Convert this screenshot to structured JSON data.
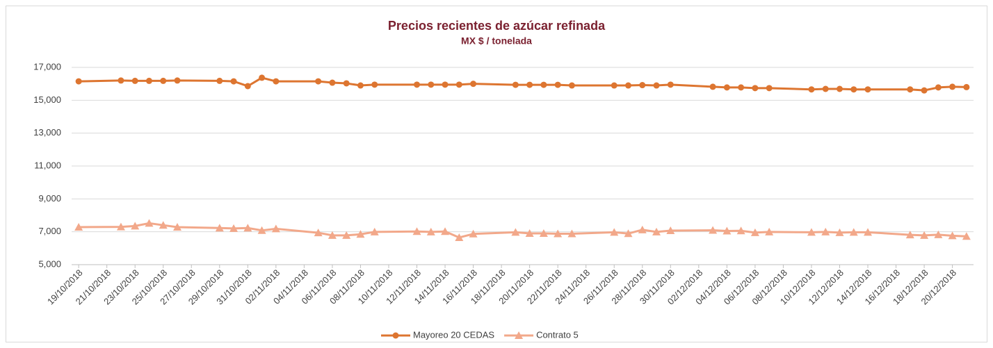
{
  "chart_data": {
    "type": "line",
    "title": "Precios recientes de azúcar refinada",
    "subtitle": "MX $ / tonelada",
    "x": [
      "19/10/2018",
      "22/10/2018",
      "23/10/2018",
      "24/10/2018",
      "25/10/2018",
      "26/10/2018",
      "29/10/2018",
      "30/10/2018",
      "31/10/2018",
      "01/11/2018",
      "02/11/2018",
      "05/11/2018",
      "06/11/2018",
      "07/11/2018",
      "08/11/2018",
      "09/11/2018",
      "12/11/2018",
      "13/11/2018",
      "14/11/2018",
      "15/11/2018",
      "16/11/2018",
      "19/11/2018",
      "20/11/2018",
      "21/11/2018",
      "22/11/2018",
      "23/11/2018",
      "26/11/2018",
      "27/11/2018",
      "28/11/2018",
      "29/11/2018",
      "30/11/2018",
      "03/12/2018",
      "04/12/2018",
      "05/12/2018",
      "06/12/2018",
      "07/12/2018",
      "10/12/2018",
      "11/12/2018",
      "12/12/2018",
      "13/12/2018",
      "14/12/2018",
      "17/12/2018",
      "18/12/2018",
      "19/12/2018",
      "20/12/2018",
      "21/12/2018"
    ],
    "series": [
      {
        "name": "Mayoreo 20 CEDAS",
        "color": "#dd7530",
        "marker": "circle",
        "values": [
          16150,
          16200,
          16180,
          16180,
          16180,
          16200,
          16180,
          16150,
          15860,
          16370,
          16150,
          16150,
          16070,
          16030,
          15900,
          15950,
          15950,
          15950,
          15950,
          15950,
          16000,
          15940,
          15940,
          15940,
          15940,
          15900,
          15900,
          15900,
          15920,
          15900,
          15950,
          15820,
          15780,
          15780,
          15740,
          15740,
          15660,
          15690,
          15690,
          15660,
          15660,
          15660,
          15600,
          15780,
          15820,
          15800
        ]
      },
      {
        "name": "Contrato 5",
        "color": "#f2a88a",
        "marker": "triangle",
        "values": [
          7280,
          7300,
          7350,
          7520,
          7400,
          7280,
          7230,
          7200,
          7230,
          7080,
          7180,
          6940,
          6780,
          6780,
          6850,
          6990,
          7020,
          6990,
          7020,
          6650,
          6870,
          6970,
          6900,
          6900,
          6880,
          6880,
          6970,
          6890,
          7120,
          6990,
          7070,
          7090,
          7050,
          7060,
          6950,
          6990,
          6970,
          6990,
          6950,
          6970,
          6970,
          6810,
          6780,
          6820,
          6760,
          6720
        ]
      }
    ],
    "xlim": [
      "19/10/2018",
      "21/12/2018"
    ],
    "xticks": [
      "19/10/2018",
      "21/10/2018",
      "23/10/2018",
      "25/10/2018",
      "27/10/2018",
      "29/10/2018",
      "31/10/2018",
      "02/11/2018",
      "04/11/2018",
      "06/11/2018",
      "08/11/2018",
      "10/11/2018",
      "12/11/2018",
      "14/11/2018",
      "16/11/2018",
      "18/11/2018",
      "20/11/2018",
      "22/11/2018",
      "24/11/2018",
      "26/11/2018",
      "28/11/2018",
      "30/11/2018",
      "02/12/2018",
      "04/12/2018",
      "06/12/2018",
      "08/12/2018",
      "10/12/2018",
      "12/12/2018",
      "14/12/2018",
      "16/12/2018",
      "18/12/2018",
      "20/12/2018"
    ],
    "ylim": [
      5000,
      17000
    ],
    "yticks": [
      {
        "value": 5000,
        "label": "5,000"
      },
      {
        "value": 7000,
        "label": "7,000"
      },
      {
        "value": 9000,
        "label": "9,000"
      },
      {
        "value": 11000,
        "label": "11,000"
      },
      {
        "value": 13000,
        "label": "13,000"
      },
      {
        "value": 15000,
        "label": "15,000"
      },
      {
        "value": 17000,
        "label": "17,000"
      }
    ],
    "grid": true,
    "legend": "bottom"
  }
}
